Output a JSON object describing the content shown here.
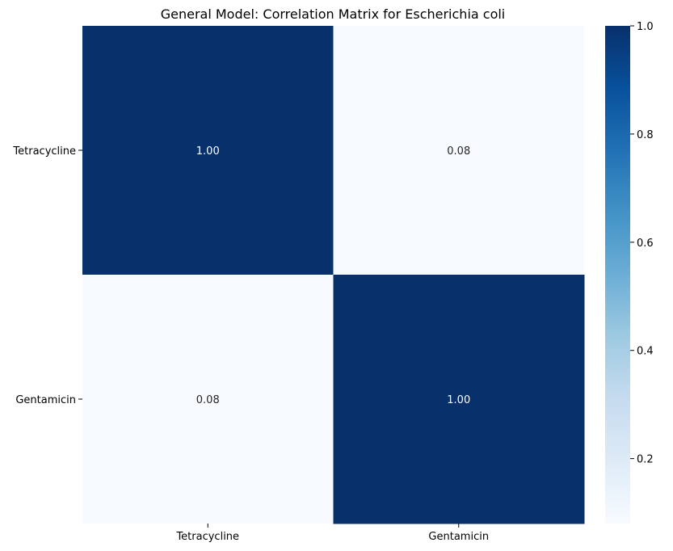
{
  "chart_data": {
    "type": "heatmap",
    "title": "General Model: Correlation Matrix for Escherichia coli",
    "x_categories": [
      "Tetracycline",
      "Gentamicin"
    ],
    "y_categories": [
      "Tetracycline",
      "Gentamicin"
    ],
    "values": [
      [
        1.0,
        0.08
      ],
      [
        0.08,
        1.0
      ]
    ],
    "cell_labels": [
      [
        "1.00",
        "0.08"
      ],
      [
        "0.08",
        "1.00"
      ]
    ],
    "colormap": "Blues",
    "vmin": 0.08,
    "vmax": 1.0,
    "colorbar_ticks": [
      "0.2",
      "0.4",
      "0.6",
      "0.8",
      "1.0"
    ],
    "colorbar_tick_values": [
      0.2,
      0.4,
      0.6,
      0.8,
      1.0
    ],
    "colors": {
      "cmap": [
        "#f7fbff",
        "#deebf7",
        "#c6dbef",
        "#9ecae1",
        "#6baed6",
        "#4292c6",
        "#2171b5",
        "#08519c",
        "#08306b"
      ]
    }
  }
}
